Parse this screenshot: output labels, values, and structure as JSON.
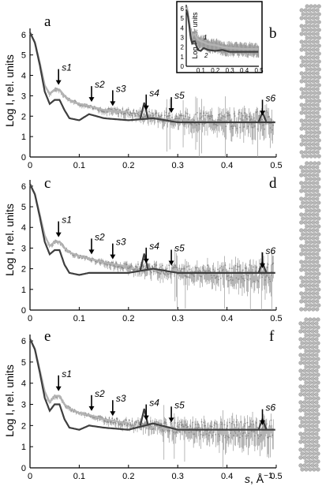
{
  "figure": {
    "y_axis_title": "Log I, rel. units",
    "x_axis_title_var": "s",
    "x_axis_title_unit": ", Å",
    "x_axis_title_exp": "−1",
    "x_tick_labels": [
      "0",
      "0.1",
      "0.2",
      "0.3",
      "0.4",
      "0.5"
    ],
    "y_tick_labels": [
      "0",
      "1",
      "2",
      "3",
      "4",
      "5",
      "6"
    ]
  },
  "panels": [
    {
      "letter": "a",
      "model_letter": "b"
    },
    {
      "letter": "c",
      "model_letter": "d"
    },
    {
      "letter": "e",
      "model_letter": "f"
    }
  ],
  "markers": [
    {
      "label": "s1",
      "s": 0.058
    },
    {
      "label": "s2",
      "s": 0.125
    },
    {
      "label": "s3",
      "s": 0.168
    },
    {
      "label": "s4",
      "s": 0.236
    },
    {
      "label": "s5",
      "s": 0.287
    },
    {
      "label": "s6",
      "s": 0.472
    }
  ],
  "inset": {
    "y_axis_title": "Log I, rel. units",
    "x_tick_labels": [
      "0.1",
      "0.2",
      "0.3",
      "0.4",
      "0.5"
    ],
    "y_tick_labels": [
      "0",
      "1",
      "2",
      "3",
      "4",
      "5",
      "6"
    ],
    "curve_labels": [
      "1",
      "2"
    ]
  },
  "chart_data": [
    {
      "type": "line",
      "panel": "a",
      "xlabel": "s, Å−1",
      "ylabel": "Log I, rel. units",
      "xlim": [
        0,
        0.5
      ],
      "ylim": [
        0,
        6.3
      ],
      "x": [
        0,
        0.01,
        0.02,
        0.03,
        0.04,
        0.05,
        0.06,
        0.07,
        0.08,
        0.1,
        0.12,
        0.15,
        0.2,
        0.25,
        0.3,
        0.4,
        0.5
      ],
      "series": [
        {
          "values": [
            6.1,
            5.6,
            4.6,
            3.5,
            3.1,
            3.3,
            3.3,
            3.0,
            2.8,
            2.6,
            2.5,
            2.3,
            2.2,
            2.0,
            1.9,
            1.8,
            1.8
          ]
        },
        {
          "values": [
            6.1,
            5.6,
            4.5,
            3.2,
            2.6,
            2.8,
            2.8,
            2.3,
            1.9,
            1.8,
            2.1,
            1.9,
            1.8,
            1.9,
            1.7,
            1.7,
            1.7
          ]
        }
      ]
    },
    {
      "type": "line",
      "panel": "c",
      "xlabel": "s, Å−1",
      "ylabel": "Log I, rel. units",
      "xlim": [
        0,
        0.5
      ],
      "ylim": [
        0,
        6.3
      ],
      "x": [
        0,
        0.01,
        0.02,
        0.03,
        0.04,
        0.05,
        0.06,
        0.07,
        0.08,
        0.1,
        0.12,
        0.15,
        0.2,
        0.25,
        0.3,
        0.4,
        0.5
      ],
      "series": [
        {
          "values": [
            6.1,
            5.6,
            4.6,
            3.6,
            3.1,
            3.3,
            3.3,
            3.0,
            2.8,
            2.6,
            2.5,
            2.3,
            2.1,
            2.0,
            1.9,
            1.8,
            1.8
          ]
        },
        {
          "values": [
            6.1,
            5.6,
            4.5,
            3.3,
            2.7,
            2.9,
            2.9,
            2.2,
            1.8,
            1.7,
            1.8,
            1.8,
            1.8,
            2.0,
            1.8,
            1.8,
            1.8
          ]
        }
      ]
    },
    {
      "type": "line",
      "panel": "e",
      "xlabel": "s, Å−1",
      "ylabel": "Log I, rel. units",
      "xlim": [
        0,
        0.5
      ],
      "ylim": [
        0,
        6.3
      ],
      "x": [
        0,
        0.01,
        0.02,
        0.03,
        0.04,
        0.05,
        0.06,
        0.07,
        0.08,
        0.1,
        0.12,
        0.15,
        0.2,
        0.25,
        0.3,
        0.4,
        0.5
      ],
      "series": [
        {
          "values": [
            6.1,
            5.6,
            4.6,
            3.6,
            3.1,
            3.4,
            3.4,
            3.0,
            2.8,
            2.6,
            2.5,
            2.3,
            2.1,
            2.0,
            1.9,
            1.8,
            1.8
          ]
        },
        {
          "values": [
            6.1,
            5.6,
            4.5,
            3.3,
            2.7,
            3.0,
            3.0,
            2.3,
            1.9,
            1.8,
            2.0,
            1.9,
            1.8,
            2.1,
            1.8,
            1.8,
            1.8
          ]
        }
      ]
    }
  ]
}
